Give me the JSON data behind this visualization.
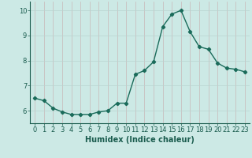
{
  "x": [
    0,
    1,
    2,
    3,
    4,
    5,
    6,
    7,
    8,
    9,
    10,
    11,
    12,
    13,
    14,
    15,
    16,
    17,
    18,
    19,
    20,
    21,
    22,
    23
  ],
  "y": [
    6.5,
    6.4,
    6.1,
    5.95,
    5.85,
    5.85,
    5.85,
    5.95,
    6.0,
    6.3,
    6.3,
    7.45,
    7.6,
    7.95,
    9.35,
    9.85,
    10.0,
    9.15,
    8.55,
    8.45,
    7.9,
    7.7,
    7.65,
    7.55
  ],
  "line_color": "#1a6b5a",
  "marker": "D",
  "marker_size": 2.2,
  "bg_color": "#cce9e5",
  "grid_color_vert": "#c9b8b8",
  "grid_color_horiz": "#b8d4d0",
  "xlabel": "Humidex (Indice chaleur)",
  "xlim": [
    -0.5,
    23.5
  ],
  "ylim": [
    5.5,
    10.35
  ],
  "yticks": [
    6,
    7,
    8,
    9,
    10
  ],
  "xticks": [
    0,
    1,
    2,
    3,
    4,
    5,
    6,
    7,
    8,
    9,
    10,
    11,
    12,
    13,
    14,
    15,
    16,
    17,
    18,
    19,
    20,
    21,
    22,
    23
  ],
  "font_color": "#1a5c4e",
  "linewidth": 1.0,
  "xlabel_fontsize": 7.0,
  "tick_fontsize": 6.0
}
